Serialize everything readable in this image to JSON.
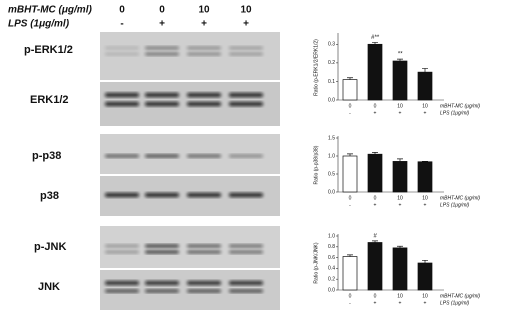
{
  "figure": {
    "header": {
      "row_labels": [
        "mBHT-MC (μg/ml)",
        "LPS (1μg/ml)"
      ],
      "doses": [
        "0",
        "0",
        "10",
        "10"
      ],
      "lps": [
        "-",
        "+",
        "+",
        "+"
      ]
    },
    "blot_labels": [
      "p-ERK1/2",
      "ERK1/2",
      "p-p38",
      "p38",
      "p-JNK",
      "JNK"
    ]
  },
  "chart_data": [
    {
      "type": "bar",
      "y_label": "Ratio (p-ERK1/2/ERK1/2)",
      "row_labels": [
        "mBHT-MC (μg/ml)",
        "LPS (1μg/ml)"
      ],
      "categories": [
        "0",
        "0",
        "10",
        "10"
      ],
      "categories2": [
        "-",
        "+",
        "+",
        "+"
      ],
      "values": [
        0.11,
        0.3,
        0.21,
        0.15
      ],
      "errors": [
        0.01,
        0.01,
        0.01,
        0.02
      ],
      "colors": [
        "#ffffff",
        "#111111",
        "#111111",
        "#111111"
      ],
      "annotations": [
        null,
        "#**",
        "**",
        null
      ],
      "ylim": [
        0,
        0.35
      ],
      "yticks": [
        {
          "value": 0,
          "label": "0.0"
        },
        0.1,
        0.2,
        0.3
      ]
    },
    {
      "type": "bar",
      "y_label": "Ratio (p-p38/p38)",
      "row_labels": [
        "mBHT-MC (μg/ml)",
        "LPS (1μg/ml)"
      ],
      "categories": [
        "0",
        "0",
        "10",
        "10"
      ],
      "categories2": [
        "-",
        "+",
        "+",
        "+"
      ],
      "values": [
        1.0,
        1.05,
        0.85,
        0.84
      ],
      "errors": [
        0.06,
        0.05,
        0.07,
        0.01
      ],
      "colors": [
        "#ffffff",
        "#111111",
        "#111111",
        "#111111"
      ],
      "annotations": [
        null,
        null,
        null,
        null
      ],
      "ylim": [
        0,
        1.5
      ],
      "yticks": [
        {
          "value": 0,
          "label": "0.0"
        },
        0.5,
        {
          "value": 1,
          "label": "1.0"
        },
        1.5
      ]
    },
    {
      "type": "bar",
      "y_label": "Ratio (p-JNK/JNK)",
      "row_labels": [
        "mBHT-MC (μg/ml)",
        "LPS (1μg/ml)"
      ],
      "categories": [
        "0",
        "0",
        "10",
        "10"
      ],
      "categories2": [
        "-",
        "+",
        "+",
        "+"
      ],
      "values": [
        0.62,
        0.88,
        0.78,
        0.5
      ],
      "errors": [
        0.03,
        0.03,
        0.03,
        0.05
      ],
      "colors": [
        "#ffffff",
        "#111111",
        "#111111",
        "#111111"
      ],
      "annotations": [
        null,
        "#",
        null,
        null
      ],
      "ylim": [
        0,
        1.0
      ],
      "yticks": [
        {
          "value": 0,
          "label": "0.0"
        },
        0.2,
        0.4,
        0.6,
        0.8,
        {
          "value": 1,
          "label": "1.0"
        }
      ]
    }
  ]
}
